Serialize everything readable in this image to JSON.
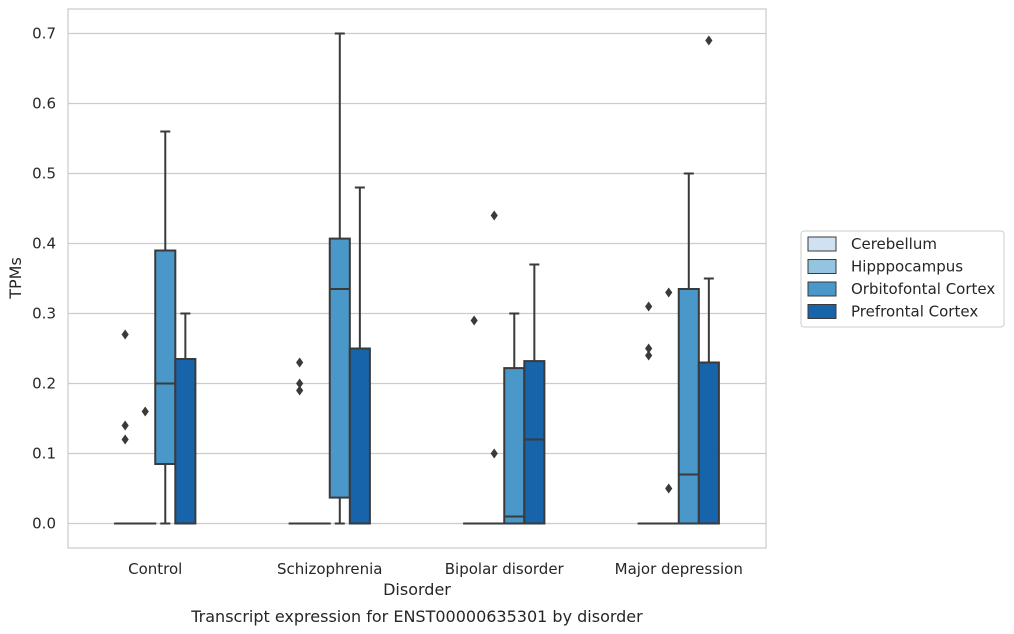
{
  "chart_data": {
    "type": "box",
    "title": "Transcript expression for ENST00000635301 by disorder",
    "xlabel": "Disorder",
    "ylabel": "TPMs",
    "ylim": [
      -0.035,
      0.735
    ],
    "yticks": [
      0.0,
      0.1,
      0.2,
      0.3,
      0.4,
      0.5,
      0.6,
      0.7
    ],
    "ytick_labels": [
      "0.0",
      "0.1",
      "0.2",
      "0.3",
      "0.4",
      "0.5",
      "0.6",
      "0.7"
    ],
    "grid": "horizontal",
    "legend_position": "right",
    "categories": [
      "Control",
      "Schizophrenia",
      "Bipolar disorder",
      "Major depression"
    ],
    "series": [
      {
        "name": "Cerebellum",
        "color": "#d0e1f2",
        "boxes": [
          {
            "q1": 0.0,
            "median": 0.0,
            "q3": 0.0,
            "whislo": 0.0,
            "whishi": 0.0,
            "fliers": [
              0.27,
              0.14,
              0.12
            ]
          },
          {
            "q1": 0.0,
            "median": 0.0,
            "q3": 0.0,
            "whislo": 0.0,
            "whishi": 0.0,
            "fliers": [
              0.23,
              0.2,
              0.19
            ]
          },
          {
            "q1": 0.0,
            "median": 0.0,
            "q3": 0.0,
            "whislo": 0.0,
            "whishi": 0.0,
            "fliers": [
              0.29
            ]
          },
          {
            "q1": 0.0,
            "median": 0.0,
            "q3": 0.0,
            "whislo": 0.0,
            "whishi": 0.0,
            "fliers": [
              0.31,
              0.25,
              0.24
            ]
          }
        ]
      },
      {
        "name": "Hipppocampus",
        "color": "#94c4df",
        "boxes": [
          {
            "q1": 0.0,
            "median": 0.0,
            "q3": 0.0,
            "whislo": 0.0,
            "whishi": 0.0,
            "fliers": [
              0.16
            ]
          },
          {
            "q1": 0.0,
            "median": 0.0,
            "q3": 0.0,
            "whislo": 0.0,
            "whishi": 0.0,
            "fliers": []
          },
          {
            "q1": 0.0,
            "median": 0.0,
            "q3": 0.0,
            "whislo": 0.0,
            "whishi": 0.0,
            "fliers": [
              0.44,
              0.1
            ]
          },
          {
            "q1": 0.0,
            "median": 0.0,
            "q3": 0.0,
            "whislo": 0.0,
            "whishi": 0.0,
            "fliers": [
              0.33,
              0.05
            ]
          }
        ]
      },
      {
        "name": "Orbitofontal Cortex",
        "color": "#4a98c9",
        "boxes": [
          {
            "q1": 0.085,
            "median": 0.2,
            "q3": 0.39,
            "whislo": 0.0,
            "whishi": 0.56,
            "fliers": []
          },
          {
            "q1": 0.037,
            "median": 0.335,
            "q3": 0.407,
            "whislo": 0.0,
            "whishi": 0.7,
            "fliers": []
          },
          {
            "q1": 0.0,
            "median": 0.01,
            "q3": 0.222,
            "whislo": 0.0,
            "whishi": 0.3,
            "fliers": []
          },
          {
            "q1": 0.0,
            "median": 0.07,
            "q3": 0.335,
            "whislo": 0.0,
            "whishi": 0.5,
            "fliers": []
          }
        ]
      },
      {
        "name": "Prefrontal Cortex",
        "color": "#1764ab",
        "boxes": [
          {
            "q1": 0.0,
            "median": 0.0,
            "q3": 0.235,
            "whislo": 0.0,
            "whishi": 0.3,
            "fliers": []
          },
          {
            "q1": 0.0,
            "median": 0.0,
            "q3": 0.25,
            "whislo": 0.0,
            "whishi": 0.48,
            "fliers": []
          },
          {
            "q1": 0.0,
            "median": 0.12,
            "q3": 0.232,
            "whislo": 0.0,
            "whishi": 0.37,
            "fliers": []
          },
          {
            "q1": 0.0,
            "median": 0.0,
            "q3": 0.23,
            "whislo": 0.0,
            "whishi": 0.35,
            "fliers": [
              0.69
            ]
          }
        ]
      }
    ]
  }
}
